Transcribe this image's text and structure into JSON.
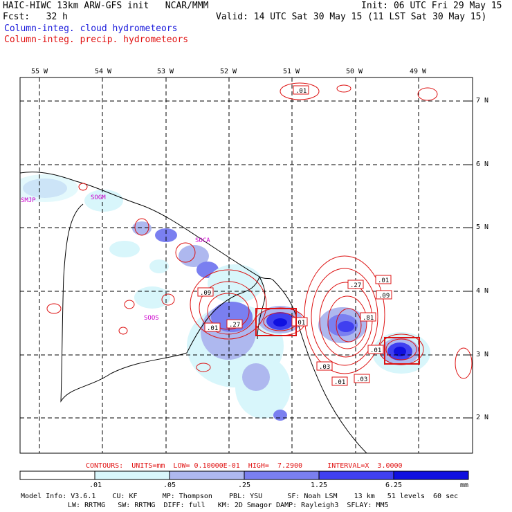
{
  "header": {
    "line1_left": "HAIC-HIWC 13km ARW-GFS init   NCAR/MMM",
    "line1_right": "Init: 06 UTC Fri 29 May 15",
    "line2_left": "Fcst:   32 h",
    "line2_right": "Valid: 14 UTC Sat 30 May 15 (11 LST Sat 30 May 15)",
    "legend_cloud": "Column-integ. cloud hydrometeors",
    "legend_precip": "Column-integ. precip. hydrometeors"
  },
  "colors": {
    "cloud_1": "#d8f6fb",
    "cloud_2": "#aeb8ef",
    "cloud_3": "#7a7ff0",
    "cloud_4": "#4040f0",
    "cloud_5": "#1010e0",
    "precip": "#dd1111",
    "station": "#cc00cc"
  },
  "axes": {
    "lon_labels": [
      "55 W",
      "54 W",
      "53 W",
      "52 W",
      "51 W",
      "50 W",
      "49 W"
    ],
    "lat_labels": [
      "7 N",
      "6 N",
      "5 N",
      "4 N",
      "3 N",
      "2 N"
    ]
  },
  "stations": [
    "SMJP",
    "SOGM",
    "SOCA",
    "SOOS"
  ],
  "contour_labels": [
    ".01",
    ".09",
    ".01",
    ".27",
    ".01",
    ".27",
    ".01",
    ".09",
    ".81",
    ".01",
    ".03",
    ".01",
    ".03"
  ],
  "contour_info": "CONTOURS:  UNITS=mm  LOW= 0.10000E-01  HIGH=  7.2900      INTERVAL=X  3.0000",
  "colorbar": {
    "ticks": [
      ".01",
      ".05",
      ".25",
      "1.25",
      "6.25"
    ],
    "unit": "mm"
  },
  "model_info": {
    "line1": "Model Info: V3.6.1    CU: KF      MP: Thompson    PBL: YSU      SF: Noah LSM    13 km   51 levels  60 sec",
    "line2": "LW: RRTMG   SW: RRTMG  DIFF: full   KM: 2D Smagor DAMP: Rayleigh3  SFLAY: MM5"
  }
}
